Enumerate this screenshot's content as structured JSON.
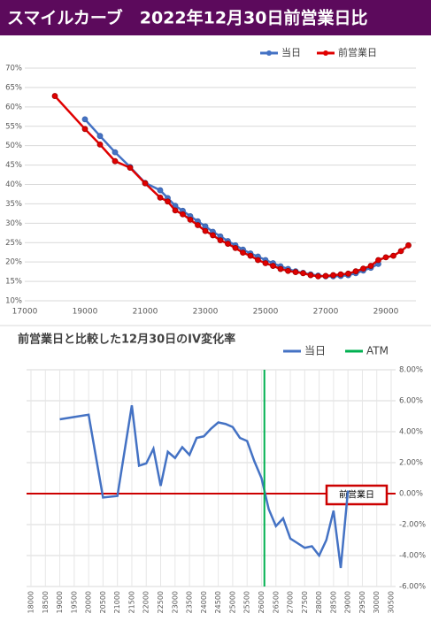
{
  "header": {
    "title": "スマイルカーブ　2022年12月30日前営業日比",
    "background": "#5c0a5c"
  },
  "chart_data": [
    {
      "type": "line",
      "x": [
        18000,
        19000,
        19500,
        20000,
        20500,
        21000,
        21500,
        21750,
        22000,
        22250,
        22500,
        22750,
        23000,
        23250,
        23500,
        23750,
        24000,
        24250,
        24500,
        24750,
        25000,
        25250,
        25500,
        25750,
        26000,
        26250,
        26500,
        26750,
        27000,
        27250,
        27500,
        27750,
        28000,
        28250,
        28500,
        28750,
        29000,
        29250,
        29500,
        29750
      ],
      "series": [
        {
          "name": "当日",
          "color": "#4472c4",
          "values": [
            null,
            56.8,
            52.5,
            48.3,
            44.5,
            40.4,
            38.5,
            36.5,
            34.5,
            33.2,
            31.8,
            30.5,
            29.2,
            27.8,
            26.6,
            25.4,
            24.3,
            23.2,
            22.2,
            21.4,
            20.5,
            19.7,
            18.9,
            18.2,
            17.6,
            17.2,
            16.8,
            16.5,
            16.3,
            16.3,
            16.4,
            16.6,
            17.1,
            17.8,
            18.5,
            19.5,
            null,
            null,
            null,
            null
          ]
        },
        {
          "name": "前営業日",
          "color": "#e00000",
          "values": [
            62.8,
            54.3,
            50.3,
            46.0,
            44.3,
            40.3,
            36.6,
            35.6,
            33.3,
            32.3,
            30.9,
            29.5,
            28.0,
            26.9,
            25.6,
            24.7,
            23.6,
            22.4,
            21.6,
            20.5,
            19.7,
            19.0,
            18.2,
            17.7,
            17.4,
            17.1,
            16.6,
            16.3,
            16.4,
            16.6,
            16.8,
            17.0,
            17.6,
            18.3,
            19.0,
            20.5,
            21.2,
            21.6,
            22.8,
            24.3
          ]
        }
      ],
      "xlim": [
        17000,
        30000
      ],
      "xticks": [
        17000,
        19000,
        21000,
        23000,
        25000,
        27000,
        29000
      ],
      "ylim": [
        10,
        70
      ],
      "yticks": [
        {
          "value": 10,
          "label": "10%"
        },
        {
          "value": 15,
          "label": "15%"
        },
        {
          "value": 20,
          "label": "20%"
        },
        {
          "value": 25,
          "label": "25%"
        },
        {
          "value": 30,
          "label": "30%"
        },
        {
          "value": 35,
          "label": "35%"
        },
        {
          "value": 40,
          "label": "40%"
        },
        {
          "value": 45,
          "label": "45%"
        },
        {
          "value": 50,
          "label": "50%"
        },
        {
          "value": 55,
          "label": "55%"
        },
        {
          "value": 60,
          "label": "60%"
        },
        {
          "value": 65,
          "label": "65%"
        },
        {
          "value": 70,
          "label": "70%"
        }
      ],
      "grid": true,
      "markers": true,
      "legend": "top-right"
    },
    {
      "type": "line",
      "title": "前営業日と比較した12月30日のIV変化率",
      "x": [
        19000,
        19500,
        20000,
        20500,
        21000,
        21500,
        21750,
        22000,
        22250,
        22500,
        22750,
        23000,
        23250,
        23500,
        23750,
        24000,
        24250,
        24500,
        24750,
        25000,
        25250,
        25500,
        25750,
        26000,
        26250,
        26500,
        26750,
        27000,
        27250,
        27500,
        27750,
        28000,
        28250,
        28500,
        28750,
        29000
      ],
      "series": [
        {
          "name": "当日",
          "color": "#4472c4",
          "values": [
            4.8,
            4.95,
            5.1,
            -0.25,
            -0.15,
            5.7,
            1.8,
            1.95,
            2.9,
            0.5,
            2.7,
            2.3,
            3.0,
            2.5,
            3.6,
            3.7,
            4.2,
            4.6,
            4.5,
            4.3,
            3.6,
            3.4,
            2.1,
            1.0,
            -1.0,
            -2.1,
            -1.6,
            -2.9,
            -3.2,
            -3.5,
            -3.4,
            -4.0,
            -3.0,
            -1.1,
            -4.8,
            0.2
          ]
        }
      ],
      "atm": {
        "name": "ATM",
        "value": 26100,
        "color": "#00b050"
      },
      "reference_line": {
        "label": "前営業日",
        "value": 0,
        "color": "#cc0000"
      },
      "xlim": [
        18000,
        30500
      ],
      "xticks": [
        18000,
        18500,
        19000,
        19500,
        20000,
        20500,
        21000,
        21500,
        22000,
        22500,
        23000,
        23500,
        24000,
        24500,
        25000,
        25500,
        26000,
        26500,
        27000,
        27500,
        28000,
        28500,
        29000,
        29500,
        30000,
        30500
      ],
      "ylim": [
        -6,
        8
      ],
      "yticks": [
        {
          "value": 8,
          "label": "8.00%"
        },
        {
          "value": 6,
          "label": "6.00%"
        },
        {
          "value": 4,
          "label": "4.00%"
        },
        {
          "value": 2,
          "label": "2.00%"
        },
        {
          "value": 0,
          "label": "0.00%"
        },
        {
          "value": -2,
          "label": "-2.00%"
        },
        {
          "value": -4,
          "label": "-4.00%"
        },
        {
          "value": -6,
          "label": "-6.00%"
        }
      ],
      "y_axis_side": "right",
      "grid": true,
      "legend": "top-right"
    }
  ]
}
